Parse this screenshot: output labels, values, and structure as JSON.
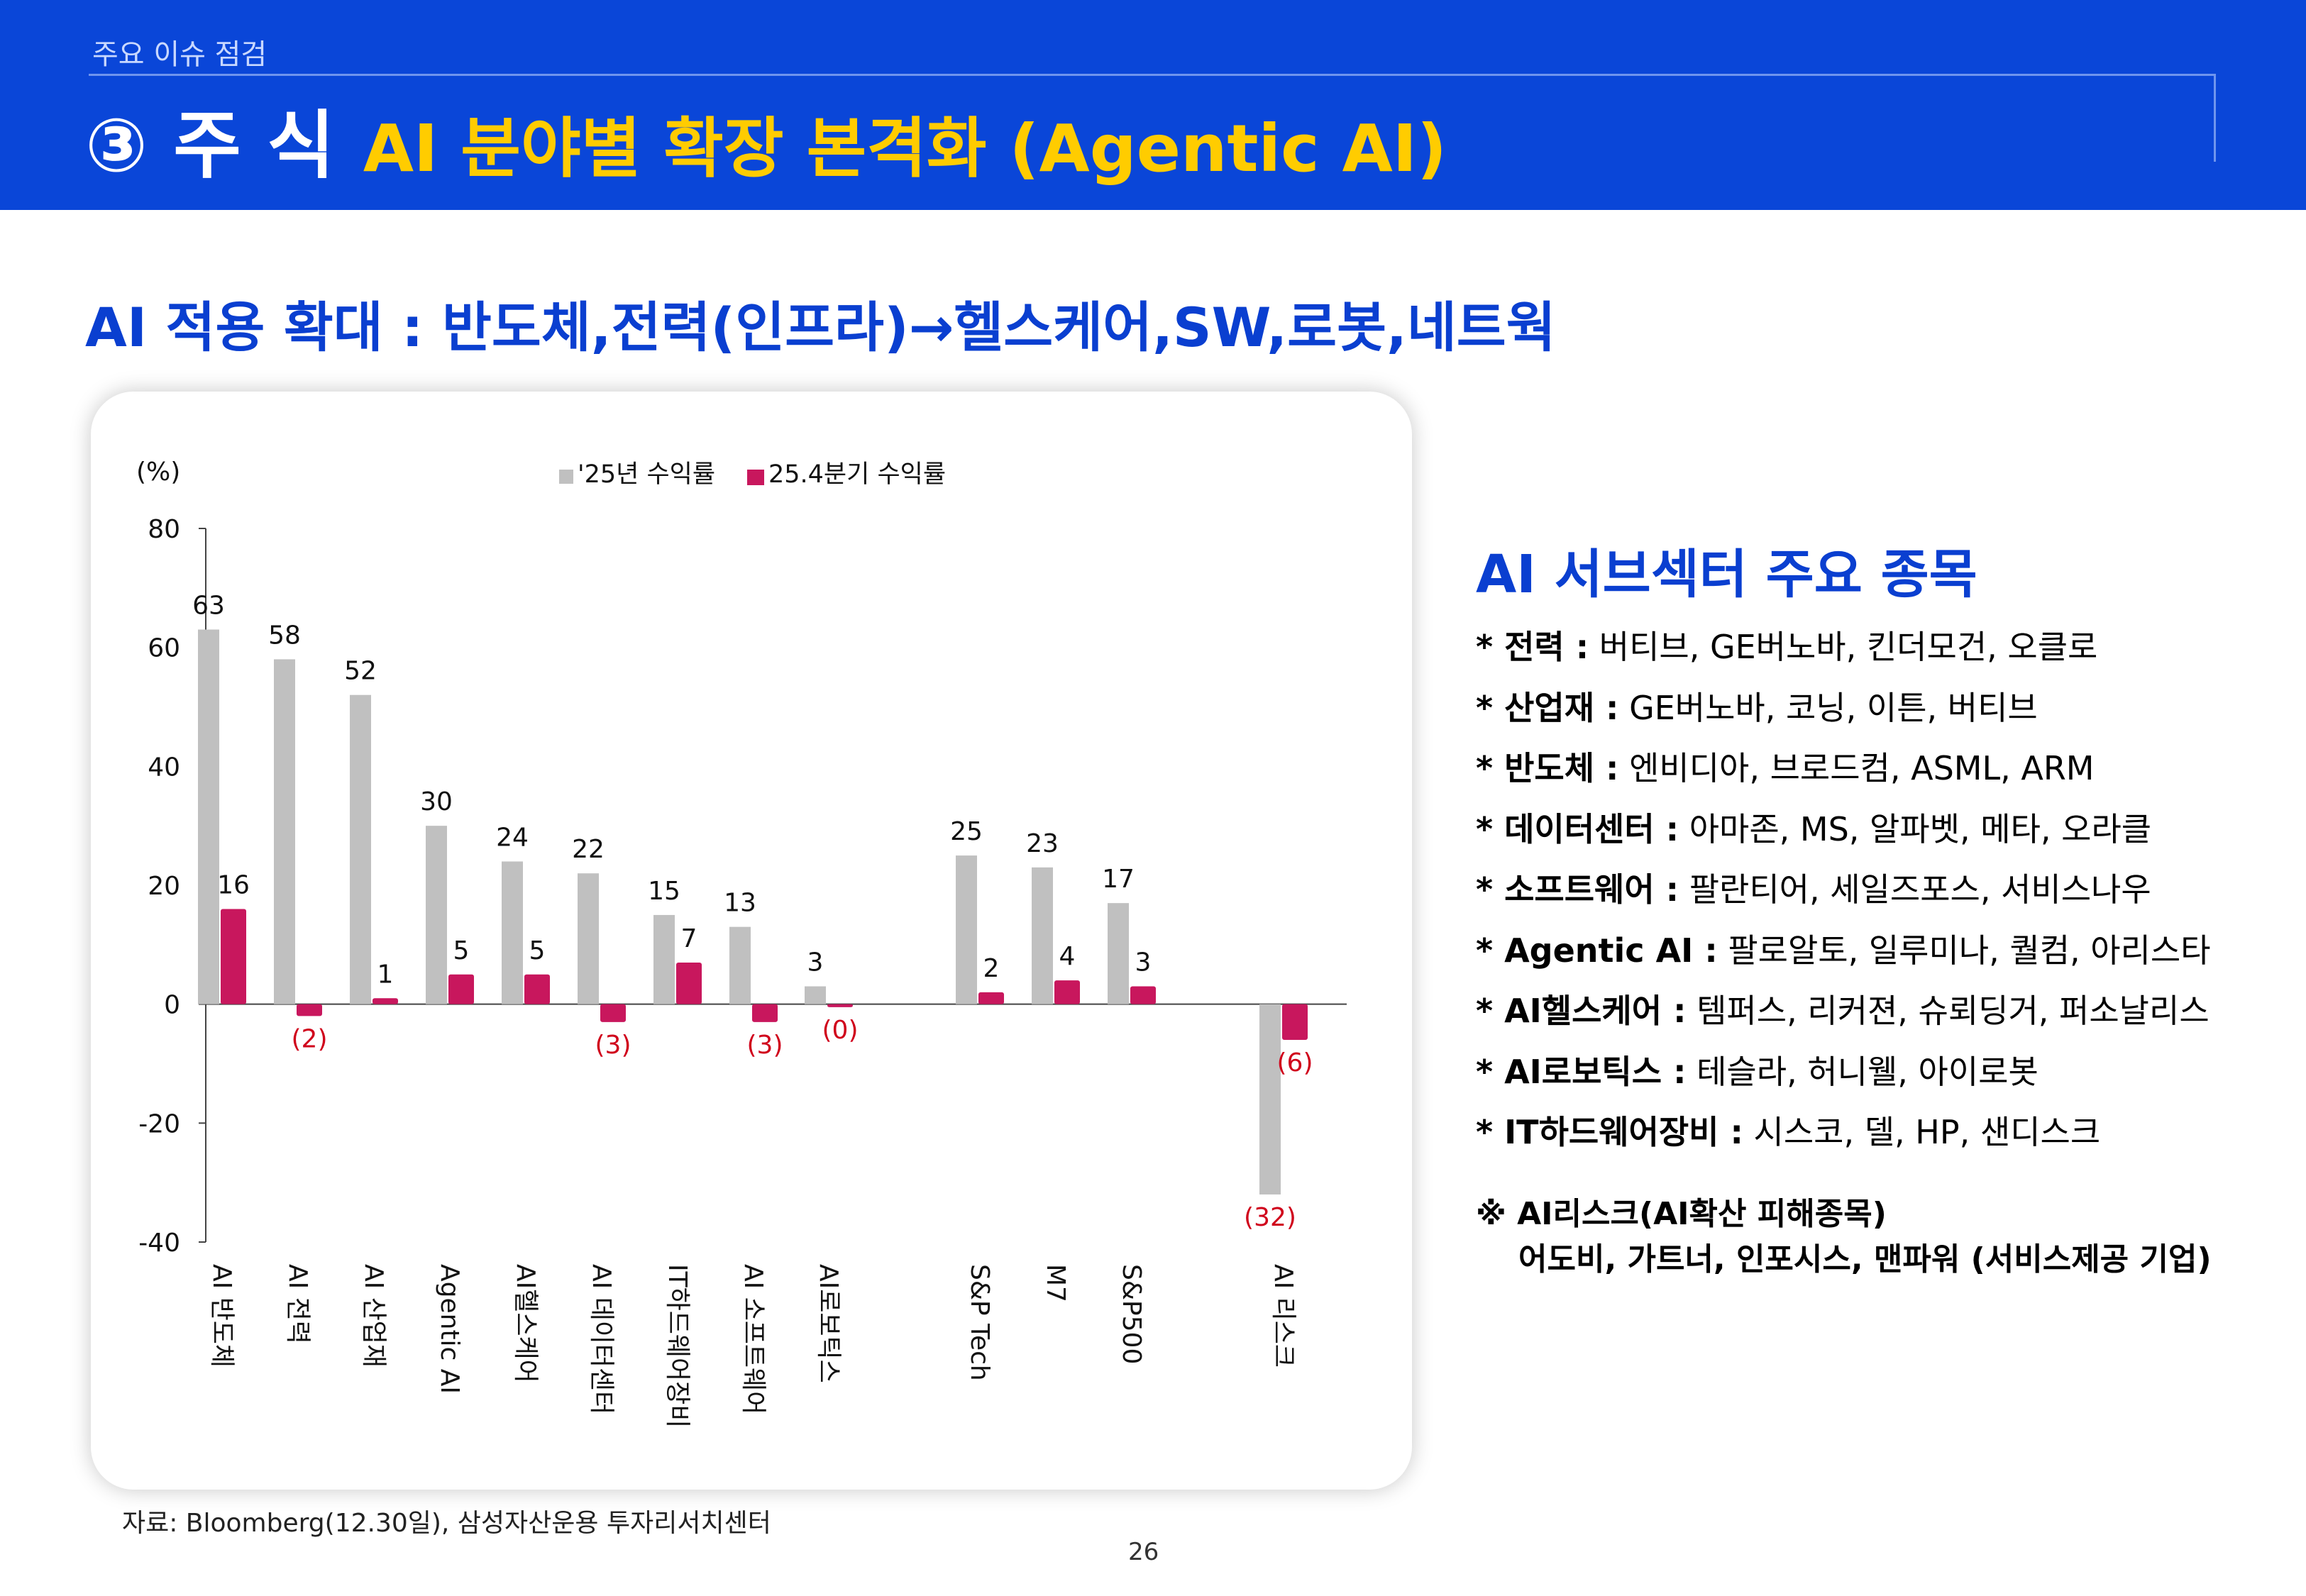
{
  "header": {
    "breadcrumb": "주요 이슈 점검",
    "title_lead": "③ 주 식",
    "title_sub": "AI 분야별 확장 본격화 (Agentic AI)"
  },
  "headline": "AI 적용 확대 : 반도체,전력(인프라)→헬스케어,SW,로봇,네트웍",
  "chart_data": {
    "type": "bar",
    "unit_label": "(%)",
    "categories": [
      "AI 반도체",
      "AI 전력",
      "AI 산업재",
      "Agentic AI",
      "AI헬스케어",
      "AI 데이터센터",
      "IT하드웨어장비",
      "AI 소프트웨어",
      "AI로보틱스",
      "S&P Tech",
      "M7",
      "S&P500",
      "AI 리스크"
    ],
    "series": [
      {
        "name": "'25년 수익률",
        "color": "#c0c0c0",
        "values": [
          63,
          58,
          52,
          30,
          24,
          22,
          15,
          13,
          3,
          25,
          23,
          17,
          -32
        ],
        "labels": [
          "63",
          "58",
          "52",
          "30",
          "24",
          "22",
          "15",
          "13",
          "3",
          "25",
          "23",
          "17",
          "(32)"
        ]
      },
      {
        "name": "25.4분기 수익률",
        "color": "#c8175d",
        "values": [
          16,
          -2,
          1,
          5,
          5,
          -3,
          7,
          -3,
          -0.5,
          2,
          4,
          3,
          -6
        ],
        "labels": [
          "16",
          "(2)",
          "1",
          "5",
          "5",
          "(3)",
          "7",
          "(3)",
          "(0)",
          "2",
          "4",
          "3",
          "(6)"
        ]
      }
    ],
    "ylim": [
      -40,
      80
    ],
    "yticks": [
      80,
      60,
      40,
      20,
      0,
      -20,
      -40
    ],
    "negative_label_color": "#d0021b",
    "legend_position": "top"
  },
  "sidebar": {
    "title": "AI 서브섹터 주요 종목",
    "items": [
      {
        "label": "* 전력 :",
        "text": " 버티브, GE버노바, 킨더모건, 오클로"
      },
      {
        "label": "* 산업재 :",
        "text": " GE버노바, 코닝, 이튼, 버티브"
      },
      {
        "label": "* 반도체 :",
        "text": " 엔비디아, 브로드컴, ASML, ARM"
      },
      {
        "label": "* 데이터센터 :",
        "text": " 아마존, MS, 알파벳, 메타, 오라클"
      },
      {
        "label": "* 소프트웨어 :",
        "text": " 팔란티어, 세일즈포스, 서비스나우"
      },
      {
        "label": "* Agentic AI :",
        "text": " 팔로알토, 일루미나, 퀄컴, 아리스타"
      },
      {
        "label": "* AI헬스케어 :",
        "text": " 템퍼스, 리커젼, 슈뢰딩거, 퍼소날리스"
      },
      {
        "label": "* AI로보틱스 :",
        "text": " 테슬라, 허니웰, 아이로봇"
      },
      {
        "label": "* IT하드웨어장비 :",
        "text": " 시스코, 델, HP, 샌디스크"
      }
    ],
    "risk_line1": "※ AI리스크(AI확산 피해종목)",
    "risk_line2": "어도비, 가트너, 인포시스, 맨파워 (서비스제공 기업)"
  },
  "source": "자료: Bloomberg(12.30일), 삼성자산운용 투자리서치센터",
  "page_number": "26"
}
